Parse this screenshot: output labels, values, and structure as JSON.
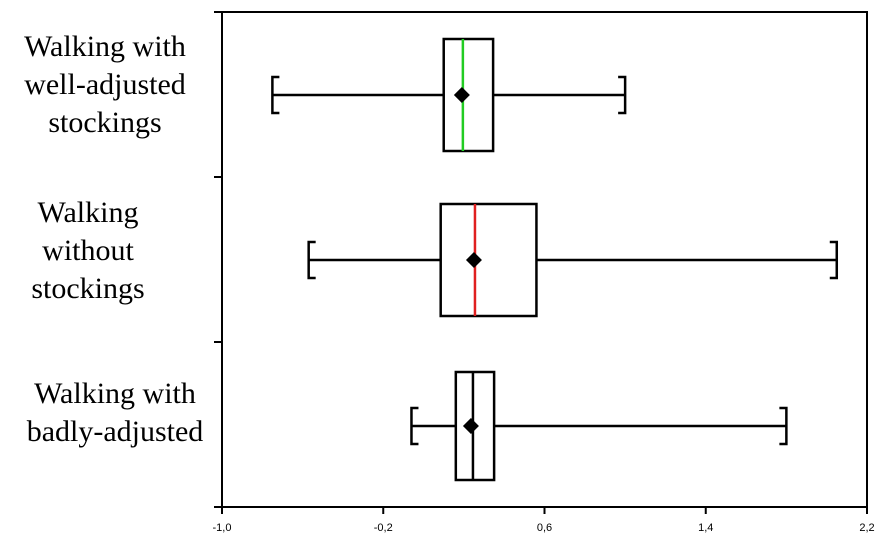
{
  "chart_data": {
    "type": "boxplot",
    "orientation": "horizontal",
    "xlim": [
      -1.0,
      2.2
    ],
    "x_ticks": [
      -1.0,
      -0.2,
      0.6,
      1.4,
      2.2
    ],
    "x_tick_labels": [
      "-1,0",
      "-0,2",
      "0,6",
      "1,4",
      "2,2"
    ],
    "groups": [
      {
        "label_lines": [
          "Walking with",
          "well-adjusted",
          "stockings"
        ],
        "min": -0.75,
        "q1": 0.1,
        "median": 0.195,
        "q3": 0.345,
        "max": 1.0,
        "mean": 0.19,
        "median_color": "#22cc22"
      },
      {
        "label_lines": [
          "Walking",
          "without",
          "stockings"
        ],
        "min": -0.57,
        "q1": 0.085,
        "median": 0.255,
        "q3": 0.56,
        "max": 2.05,
        "mean": 0.25,
        "median_color": "#e02020"
      },
      {
        "label_lines": [
          "Walking with",
          "badly-adjusted"
        ],
        "min": -0.06,
        "q1": 0.16,
        "median": 0.245,
        "q3": 0.35,
        "max": 1.8,
        "mean": 0.235,
        "median_color": "#000000"
      }
    ]
  }
}
